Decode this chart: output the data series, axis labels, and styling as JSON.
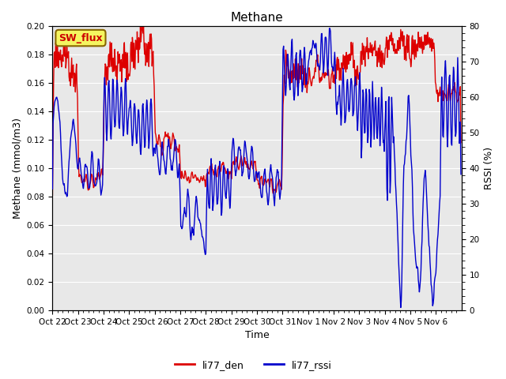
{
  "title": "Methane",
  "ylabel_left": "Methane (mmol/m3)",
  "ylabel_right": "RSSI (%)",
  "xlabel": "Time",
  "ylim_left": [
    0.0,
    0.2
  ],
  "ylim_right": [
    0,
    80
  ],
  "yticks_left": [
    0.0,
    0.02,
    0.04,
    0.06,
    0.08,
    0.1,
    0.12,
    0.14,
    0.16,
    0.18,
    0.2
  ],
  "yticks_right": [
    0,
    10,
    20,
    30,
    40,
    50,
    60,
    70,
    80
  ],
  "xtick_labels": [
    "Oct 22",
    "Oct 23",
    "Oct 24",
    "Oct 25",
    "Oct 26",
    "Oct 27",
    "Oct 28",
    "Oct 29",
    "Oct 30",
    "Oct 31",
    "Nov 1",
    "Nov 2",
    "Nov 3",
    "Nov 4",
    "Nov 5",
    "Nov 6"
  ],
  "color_red": "#dd0000",
  "color_blue": "#0000cc",
  "legend_labels": [
    "li77_den",
    "li77_rssi"
  ],
  "sw_flux_label": "SW_flux",
  "sw_flux_bg": "#f5f560",
  "sw_flux_border": "#886600",
  "bg_color": "#e8e8e8",
  "grid_color": "#ffffff",
  "fig_bg": "#ffffff",
  "title_fontsize": 11,
  "label_fontsize": 9,
  "tick_fontsize": 7.5,
  "line_width": 1.0
}
